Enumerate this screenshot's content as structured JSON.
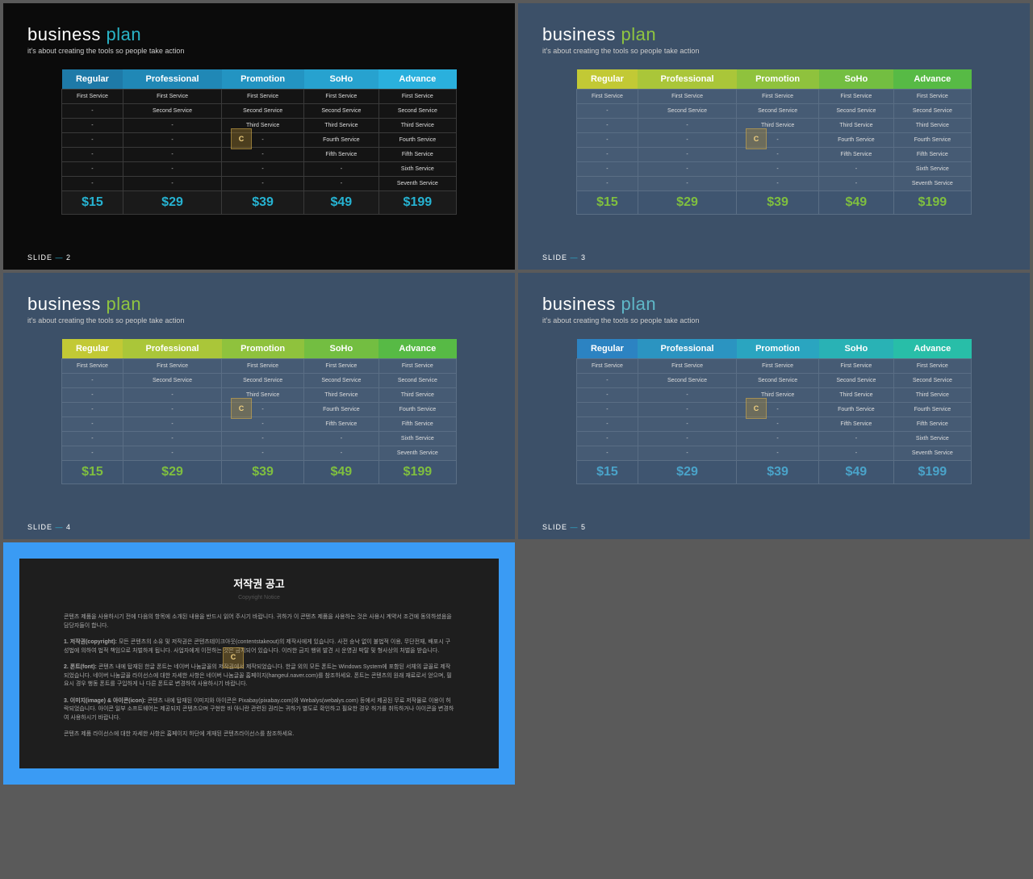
{
  "common": {
    "title_w1": "business",
    "title_w2": "plan",
    "subtitle": "it's about creating the tools so people take action",
    "slide_label": "SLIDE",
    "columns": [
      "Regular",
      "Professional",
      "Promotion",
      "SoHo",
      "Advance"
    ],
    "rows": [
      [
        "First Service",
        "First Service",
        "First Service",
        "First Service",
        "First Service"
      ],
      [
        "-",
        "Second Service",
        "Second Service",
        "Second Service",
        "Second Service"
      ],
      [
        "-",
        "-",
        "Third Service",
        "Third Service",
        "Third Service"
      ],
      [
        "-",
        "-",
        "-",
        "Fourth Service",
        "Fourth Service"
      ],
      [
        "-",
        "-",
        "-",
        "Fifth Service",
        "Fifth Service"
      ],
      [
        "-",
        "-",
        "-",
        "-",
        "Sixth Service"
      ],
      [
        "-",
        "-",
        "-",
        "-",
        "Seventh Service"
      ]
    ],
    "prices": [
      "$15",
      "$29",
      "$39",
      "$49",
      "$199"
    ]
  },
  "slides": [
    {
      "num": "2",
      "bg": "#0b0b0b",
      "title_accent": "#2ab5c8",
      "header_colors": [
        "#1e7aa8",
        "#2088b6",
        "#2394c2",
        "#27a2cf",
        "#2ab0dd"
      ],
      "cell_bg": "#141414",
      "cell_border": "#3a3a3a",
      "price_color": "#26b3d2",
      "price_bg": "#1a1a1a"
    },
    {
      "num": "3",
      "bg": "#3c5068",
      "title_accent": "#8fc540",
      "header_colors": [
        "#c2c935",
        "#aac639",
        "#8fc23d",
        "#73be41",
        "#57ba45"
      ],
      "cell_bg": "#465b74",
      "cell_border": "#5a6e85",
      "price_color": "#7fbf3f",
      "price_bg": "#3f5570"
    },
    {
      "num": "4",
      "bg": "#3c5068",
      "title_accent": "#8fc540",
      "header_colors": [
        "#c2c935",
        "#aac639",
        "#8fc23d",
        "#73be41",
        "#57ba45"
      ],
      "cell_bg": "#465b74",
      "cell_border": "#5a6e85",
      "price_color": "#7fbf3f",
      "price_bg": "#3f5570"
    },
    {
      "num": "5",
      "bg": "#3c5068",
      "title_accent": "#5fb8c8",
      "header_colors": [
        "#2c83c2",
        "#2b94c1",
        "#2aa5c0",
        "#29b2b5",
        "#28bea8"
      ],
      "cell_bg": "#465b74",
      "cell_border": "#5a6e85",
      "price_color": "#4aa3c9",
      "price_bg": "#3f5570"
    }
  ],
  "copyright": {
    "title": "저작권 공고",
    "sub": "Copyright Notice",
    "p1": "콘텐츠 제품을 사용하시기 전에 다음의 항목에 소개된 내용을 반드시 읽어 주시기 바랍니다. 귀하가 이 콘텐츠 제품을 사용하는 것은 사용시 계약서 조건에 동의하셨음을 담당자들이 합니다.",
    "p2_label": "1. 저작권(copyright):",
    "p2": "모든 콘텐츠의 소유 및 저작권은 콘텐츠테이크아웃(contentstakeout)의 제작사에게 있습니다. 사전 승낙 없이 불법적 이용, 무단전재, 배포시 구성법에 의하여 법적 책임으로 처벌하게 됩니다. 사업자에게 이전하는 것은 금지되어 있습니다. 이러한 금지 행위 발견 시 운영권 박탈 및 형사상의 처벌을 받습니다.",
    "p3_label": "2. 폰트(font):",
    "p3": "콘텐츠 내에 탑재된 한글 폰트는 네이버 나눔글꼴의 저작권에서 제작되었습니다. 한글 외의 모든 폰트는 Windows System에 포함된 서체의 글꼴로 제작되었습니다. 네이버 나눔글꼴 라이선스에 대한 자세한 사항은 네이버 나눔글꼴 홈페이지(hangeul.naver.com)를 참조하세요. 폰트는 콘텐츠의 원래 재료로서 얻으며, 필요시 경우 행동 폰트를 구입하게 나 다른 폰트로 변경하여 사용하시기 바랍니다.",
    "p4_label": "3. 이미지(image) & 아이콘(icon):",
    "p4": "콘텐츠 내에 탑재된 이미지와 아이콘은 Pixabay(pixabay.com)와 Webalys(webalys.com) 등에서 제공된 무료 저작물로 이용이 허락되었습니다. 아이콘 일부 소프트웨어는 제공되지 콘텐츠으며 구현한 바 아니란 관련된 권리는 귀하가 별도로 확인하고 필요한 경우 허가를 취득하거나 아이콘을 변경하여 사용하시기 바랍니다.",
    "p5": "콘텐츠 제품 라이선스에 대한 자세한 사항은 홈페이지 하단에 게재된 콘텐츠라이선스를 참조하세요."
  }
}
